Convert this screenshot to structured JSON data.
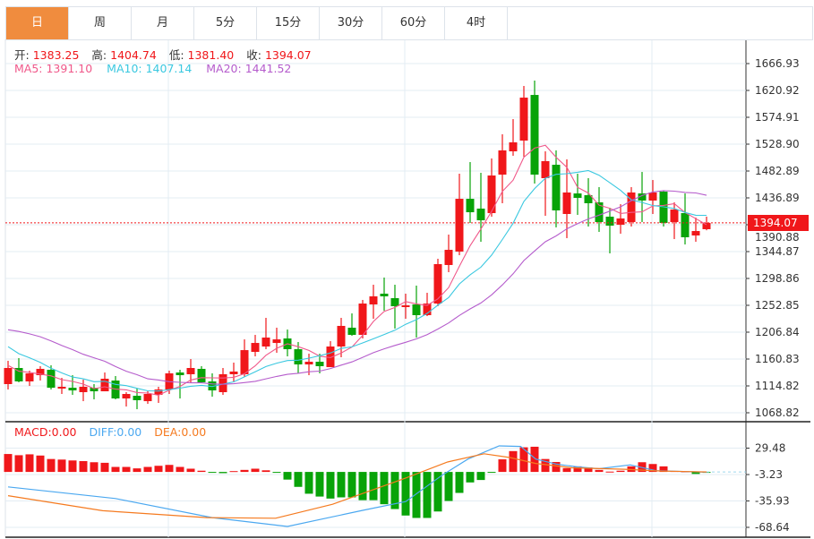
{
  "tabs": [
    "日",
    "周",
    "月",
    "5分",
    "15分",
    "30分",
    "60分",
    "4时"
  ],
  "active_tab": 0,
  "ohlc_info": {
    "open_label": "开:",
    "open": "1383.25",
    "high_label": "高:",
    "high": "1404.74",
    "low_label": "低:",
    "low": "1381.40",
    "close_label": "收:",
    "close": "1394.07"
  },
  "ma_info": {
    "ma5": "MA5: 1391.10",
    "ma10": "MA10: 1407.14",
    "ma20": "MA20: 1441.52"
  },
  "macd_info": {
    "macd": "MACD:0.00",
    "diff": "DIFF:0.00",
    "dea": "DEA:0.00"
  },
  "last_price": "1394.07",
  "colors": {
    "up": "#f0171a",
    "down": "#08a308",
    "ma5": "#f0588a",
    "ma10": "#3ac8e0",
    "ma20": "#b55ccc",
    "diff": "#4ba8f0",
    "dea": "#f57a1f",
    "accent": "#f08c3e"
  },
  "chart_data": [
    {
      "type": "candlestick",
      "title": "Daily K-line",
      "y_ticks": [
        "1666.93",
        "1620.92",
        "1574.91",
        "1528.90",
        "1482.89",
        "1436.89",
        "1390.88",
        "1344.87",
        "1298.86",
        "1252.85",
        "1206.84",
        "1160.83",
        "1114.82",
        "1068.82"
      ],
      "ylim": [
        1068.82,
        1666.93
      ],
      "candles_ohlc": [
        [
          1117.9,
          1145.5,
          1157.8,
          1108.7
        ],
        [
          1145.5,
          1122.5,
          1162.4,
          1121.0
        ],
        [
          1122.5,
          1136.3,
          1140.9,
          1114.8
        ],
        [
          1133.2,
          1144.0,
          1148.6,
          1124.0
        ],
        [
          1142.4,
          1111.7,
          1150.1,
          1108.7
        ],
        [
          1110.2,
          1113.3,
          1128.6,
          1101.0
        ],
        [
          1111.7,
          1107.1,
          1133.2,
          1099.5
        ],
        [
          1104.1,
          1113.3,
          1125.6,
          1088.7
        ],
        [
          1111.7,
          1105.6,
          1117.9,
          1091.8
        ],
        [
          1105.6,
          1127.1,
          1137.8,
          1105.6
        ],
        [
          1124.0,
          1093.3,
          1131.7,
          1091.8
        ],
        [
          1093.3,
          1101.0,
          1104.1,
          1079.5
        ],
        [
          1097.9,
          1090.3,
          1110.2,
          1074.9
        ],
        [
          1088.7,
          1101.0,
          1105.6,
          1084.1
        ],
        [
          1099.5,
          1108.7,
          1113.3,
          1085.7
        ],
        [
          1108.7,
          1136.3,
          1140.9,
          1101.0
        ],
        [
          1137.8,
          1133.2,
          1142.4,
          1093.3
        ],
        [
          1134.8,
          1145.5,
          1160.8,
          1121.0
        ],
        [
          1144.0,
          1121.0,
          1148.6,
          1119.4
        ],
        [
          1122.5,
          1107.1,
          1136.3,
          1096.4
        ],
        [
          1104.1,
          1134.8,
          1145.5,
          1099.5
        ],
        [
          1134.8,
          1139.4,
          1154.7,
          1121.0
        ],
        [
          1134.8,
          1176.1,
          1194.5,
          1130.2
        ],
        [
          1173.1,
          1188.4,
          1202.2,
          1165.4
        ],
        [
          1182.3,
          1197.6,
          1231.4,
          1177.7
        ],
        [
          1188.4,
          1194.5,
          1214.5,
          1171.6
        ],
        [
          1196.1,
          1177.7,
          1211.4,
          1165.4
        ],
        [
          1177.7,
          1151.6,
          1190.0,
          1136.3
        ],
        [
          1151.6,
          1156.2,
          1170.0,
          1133.2
        ],
        [
          1156.2,
          1148.6,
          1170.0,
          1136.3
        ],
        [
          1147.0,
          1182.3,
          1191.5,
          1147.0
        ],
        [
          1182.3,
          1217.6,
          1231.4,
          1163.9
        ],
        [
          1214.5,
          1202.2,
          1239.0,
          1200.7
        ],
        [
          1202.2,
          1255.9,
          1262.1,
          1196.1
        ],
        [
          1254.4,
          1268.2,
          1288.1,
          1229.8
        ],
        [
          1272.8,
          1268.2,
          1300.4,
          1243.6
        ],
        [
          1265.1,
          1251.3,
          1288.1,
          1213.0
        ],
        [
          1249.8,
          1252.8,
          1272.8,
          1229.8
        ],
        [
          1254.4,
          1236.0,
          1286.6,
          1197.6
        ],
        [
          1236.0,
          1255.9,
          1274.3,
          1234.4
        ],
        [
          1255.9,
          1323.4,
          1332.6,
          1251.3
        ],
        [
          1321.9,
          1347.9,
          1374.0,
          1309.6
        ],
        [
          1344.9,
          1435.3,
          1478.3,
          1338.7
        ],
        [
          1435.3,
          1412.3,
          1498.2,
          1393.9
        ],
        [
          1418.5,
          1398.5,
          1479.8,
          1361.7
        ],
        [
          1410.8,
          1475.2,
          1504.4,
          1404.7
        ],
        [
          1476.7,
          1518.2,
          1545.8,
          1427.7
        ],
        [
          1516.6,
          1532.0,
          1571.8,
          1509.0
        ],
        [
          1535.0,
          1608.6,
          1628.6,
          1507.4
        ],
        [
          1613.2,
          1476.7,
          1637.8,
          1461.4
        ],
        [
          1470.6,
          1499.8,
          1516.6,
          1406.2
        ],
        [
          1493.6,
          1415.4,
          1518.2,
          1386.3
        ],
        [
          1409.3,
          1446.1,
          1502.8,
          1367.9
        ],
        [
          1444.5,
          1436.9,
          1478.3,
          1407.7
        ],
        [
          1441.5,
          1427.7,
          1470.6,
          1387.8
        ],
        [
          1429.2,
          1395.5,
          1455.3,
          1378.6
        ],
        [
          1404.7,
          1389.3,
          1420.0,
          1341.8
        ],
        [
          1390.9,
          1401.6,
          1426.1,
          1375.5
        ],
        [
          1395.5,
          1446.1,
          1455.3,
          1387.8
        ],
        [
          1444.5,
          1432.3,
          1481.3,
          1395.5
        ],
        [
          1432.3,
          1446.1,
          1467.5,
          1409.3
        ],
        [
          1447.6,
          1393.9,
          1449.1,
          1387.8
        ],
        [
          1395.5,
          1416.9,
          1429.2,
          1366.3
        ],
        [
          1410.8,
          1369.4,
          1444.5,
          1357.1
        ],
        [
          1372.5,
          1380.1,
          1403.1,
          1361.7
        ],
        [
          1383.25,
          1394.07,
          1404.74,
          1381.4
        ]
      ],
      "ma5_head": [
        1150,
        1140,
        1138,
        1135
      ],
      "ma10_head": [
        1182,
        1170,
        1163,
        1155,
        1145,
        1137,
        1130,
        1127,
        1122
      ],
      "ma20_head": [
        1211,
        1208,
        1204,
        1199,
        1192,
        1184,
        1177,
        1169,
        1163,
        1157,
        1148,
        1140,
        1134,
        1127,
        1125,
        1122,
        1121,
        1120,
        1120
      ]
    },
    {
      "type": "bar+line",
      "title": "MACD",
      "y_ticks": [
        "29.48",
        "-3.23",
        "-35.93",
        "-68.64"
      ],
      "histogram": [
        22.2,
        20.7,
        21.8,
        20.3,
        16.0,
        15.3,
        14.2,
        13.4,
        12.0,
        11.3,
        6.2,
        6.2,
        4.4,
        6.2,
        7.6,
        8.7,
        6.2,
        4.0,
        1.5,
        -0.5,
        -1.5,
        1.0,
        2.5,
        4.0,
        2.0,
        -1.0,
        -9.5,
        -18.5,
        -27,
        -30.5,
        -33,
        -31.5,
        -31.5,
        -35,
        -35,
        -40,
        -46,
        -54,
        -57,
        -57,
        -49,
        -36,
        -26,
        -13,
        -10,
        -0.5,
        15.6,
        25.8,
        30.5,
        31.2,
        16,
        12.3,
        4.7,
        6.9,
        5.5,
        2.5,
        0.4,
        1.5,
        6.9,
        12.0,
        9.8,
        6.9,
        1.1,
        0.7,
        -2.5,
        -1.0
      ],
      "diff_points": [
        [
          0,
          -18.5
        ],
        [
          10,
          -33
        ],
        [
          19,
          -56.6
        ],
        [
          26,
          -67.5
        ],
        [
          33,
          -47.6
        ],
        [
          37,
          -36.7
        ],
        [
          40.4,
          -4
        ],
        [
          42.8,
          16
        ],
        [
          45.7,
          32.3
        ],
        [
          47.7,
          31.6
        ],
        [
          49.1,
          16
        ],
        [
          51,
          9.8
        ],
        [
          53,
          6.2
        ],
        [
          55,
          4
        ],
        [
          57.9,
          8.7
        ],
        [
          60.3,
          1.5
        ],
        [
          65,
          -0.4
        ]
      ],
      "dea_points": [
        [
          0,
          -29.4
        ],
        [
          8.8,
          -48
        ],
        [
          18.5,
          -56.6
        ],
        [
          24.9,
          -57.4
        ],
        [
          30.2,
          -40
        ],
        [
          37,
          -7.6
        ],
        [
          40.9,
          12.3
        ],
        [
          44.3,
          22.5
        ],
        [
          46.7,
          17.8
        ],
        [
          49.1,
          10.5
        ],
        [
          52.5,
          5.1
        ],
        [
          57.4,
          3.3
        ],
        [
          60.8,
          1.1
        ],
        [
          65,
          0
        ]
      ]
    }
  ]
}
